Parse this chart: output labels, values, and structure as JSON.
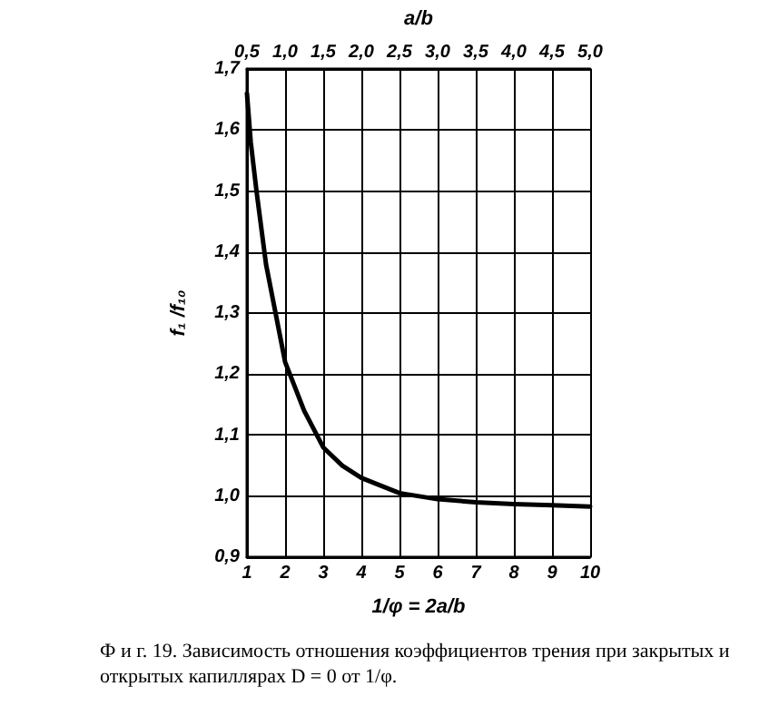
{
  "chart_data": {
    "type": "line",
    "xlabel": "1/φ = 2a/b",
    "x2label": "a/b",
    "ylabel": "f₁ /f₁₀",
    "annotations": [
      "Ф и г. 19. Зависимость отношения коэффициентов трения при закрытых и открытых капиллярах D = 0 от 1/φ."
    ],
    "x": [
      1,
      1.1,
      1.25,
      1.5,
      1.75,
      2,
      2.5,
      3,
      3.5,
      4,
      5,
      6,
      7,
      8,
      9,
      10
    ],
    "values": [
      1.66,
      1.58,
      1.5,
      1.38,
      1.3,
      1.22,
      1.14,
      1.08,
      1.05,
      1.03,
      1.005,
      0.995,
      0.99,
      0.987,
      0.985,
      0.983
    ],
    "color": "#000000",
    "marker": "none",
    "line_style": "solid",
    "grid": true,
    "xlim": [
      1,
      10
    ],
    "xticks": [
      1,
      2,
      3,
      4,
      5,
      6,
      7,
      8,
      9,
      10
    ],
    "x2lim": [
      0.5,
      5
    ],
    "x2ticks": [
      {
        "value": 0.5,
        "label": "0,5"
      },
      {
        "value": 1,
        "label": "1,0"
      },
      {
        "value": 1.5,
        "label": "1,5"
      },
      {
        "value": 2,
        "label": "2,0"
      },
      {
        "value": 2.5,
        "label": "2,5"
      },
      {
        "value": 3,
        "label": "3,0"
      },
      {
        "value": 3.5,
        "label": "3,5"
      },
      {
        "value": 4,
        "label": "4,0"
      },
      {
        "value": 4.5,
        "label": "4,5"
      },
      {
        "value": 5,
        "label": "5,0"
      }
    ],
    "ylim": [
      0.9,
      1.7
    ],
    "yticks": [
      {
        "value": 0.9,
        "label": "0,9"
      },
      {
        "value": 1,
        "label": "1,0"
      },
      {
        "value": 1.1,
        "label": "1,1"
      },
      {
        "value": 1.2,
        "label": "1,2"
      },
      {
        "value": 1.3,
        "label": "1,3"
      },
      {
        "value": 1.4,
        "label": "1,4"
      },
      {
        "value": 1.5,
        "label": "1,5"
      },
      {
        "value": 1.6,
        "label": "1,6"
      },
      {
        "value": 1.7,
        "label": "1,7"
      }
    ]
  }
}
